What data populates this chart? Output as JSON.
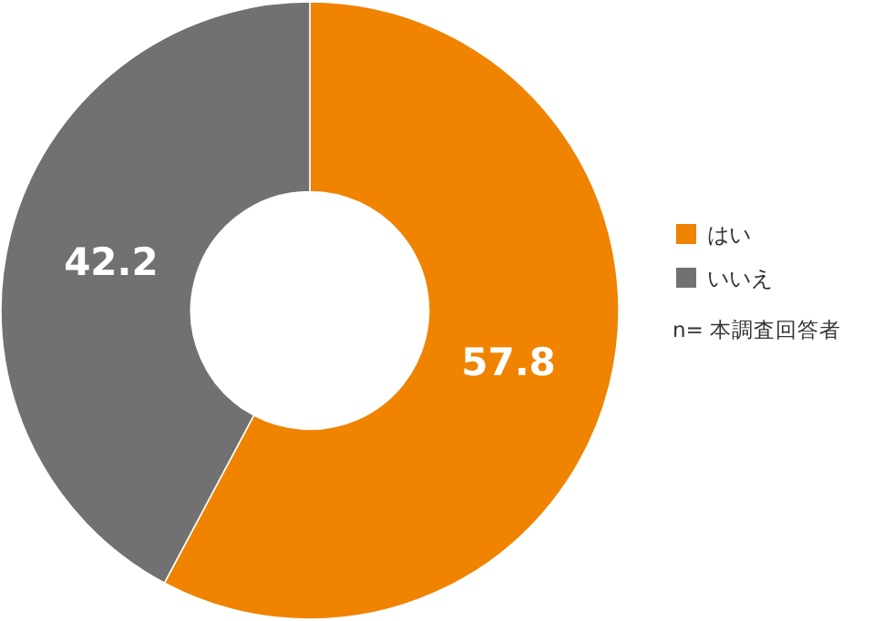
{
  "chart_data": {
    "type": "donut",
    "categories": [
      "はい",
      "いいえ"
    ],
    "values": [
      57.8,
      42.2
    ],
    "colors": [
      "#f08300",
      "#727171"
    ],
    "data_labels": true,
    "legend": "right",
    "annotations": [
      "n= 本調査回答者"
    ]
  }
}
